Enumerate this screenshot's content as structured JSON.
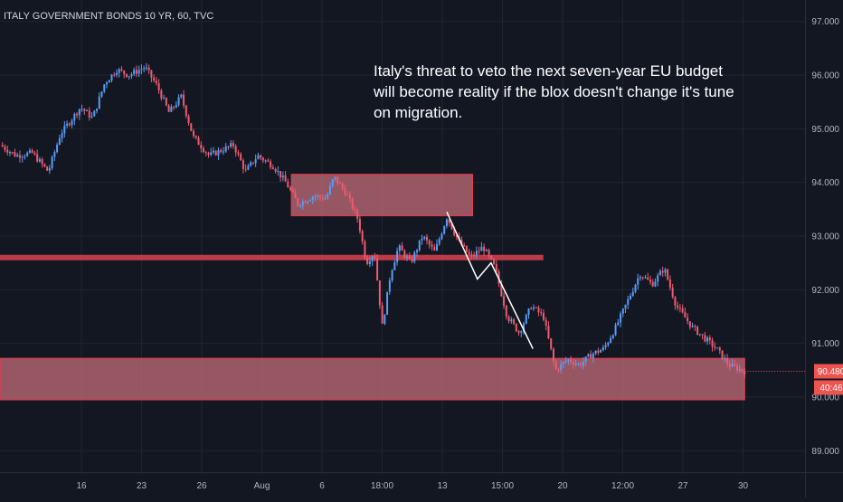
{
  "chart_data": {
    "type": "candlestick",
    "title": "ITALY GOVERNMENT BONDS 10 YR, 60, TVC",
    "y_range": [
      88.6,
      97.4
    ],
    "y_ticks": [
      {
        "value": 97,
        "label": "97.000"
      },
      {
        "value": 96,
        "label": "96.000"
      },
      {
        "value": 95,
        "label": "95.000"
      },
      {
        "value": 94,
        "label": "94.000"
      },
      {
        "value": 93,
        "label": "93.000"
      },
      {
        "value": 92,
        "label": "92.000"
      },
      {
        "value": 91,
        "label": "91.000"
      },
      {
        "value": 90,
        "label": "90.000"
      },
      {
        "value": 89,
        "label": "89.000"
      }
    ],
    "x_ticks": [
      "16",
      "23",
      "26",
      "Aug",
      "6",
      "18:00",
      "13",
      "15:00",
      "20",
      "12:00",
      "27",
      "30"
    ],
    "last_price": {
      "value": 90.48,
      "label": "90.480"
    },
    "countdown": {
      "label": "40:46"
    },
    "annotation": {
      "lines": [
        "Italy's threat to veto the next seven-year EU budget",
        "will become reality if the blox doesn't change it's tune",
        "on migration."
      ]
    },
    "colors": {
      "up": "#5b9cf6",
      "down": "#ef5b6e",
      "zone_fill": "#c96f7c",
      "zone_stroke": "#e23b4d",
      "level_line": "#d9424f",
      "trend_line": "#ffffff",
      "badge": "#ef5350",
      "grid": "#1f2431"
    },
    "levels": [
      {
        "price": 92.6,
        "x_end_fraction": 0.675
      }
    ],
    "zones": [
      {
        "top": 94.15,
        "bottom": 93.38,
        "x_from_fraction": 0.362,
        "x_to_fraction": 0.587
      },
      {
        "top": 90.72,
        "bottom": 89.95,
        "x_from_fraction": 0.0,
        "x_to_fraction": 0.925
      }
    ],
    "trend_lines": [
      [
        {
          "i": 0.555,
          "p": 93.45
        },
        {
          "i": 0.593,
          "p": 92.2
        },
        {
          "i": 0.61,
          "p": 92.5
        },
        {
          "i": 0.662,
          "p": 90.9
        }
      ]
    ],
    "path": [
      {
        "i": 0.0,
        "p": 94.7
      },
      {
        "i": 0.02,
        "p": 94.5
      },
      {
        "i": 0.04,
        "p": 94.55
      },
      {
        "i": 0.06,
        "p": 94.2
      },
      {
        "i": 0.075,
        "p": 94.9
      },
      {
        "i": 0.09,
        "p": 95.2
      },
      {
        "i": 0.1,
        "p": 95.4
      },
      {
        "i": 0.115,
        "p": 95.2
      },
      {
        "i": 0.13,
        "p": 95.85
      },
      {
        "i": 0.145,
        "p": 96.1
      },
      {
        "i": 0.16,
        "p": 96.0
      },
      {
        "i": 0.18,
        "p": 96.15
      },
      {
        "i": 0.195,
        "p": 95.8
      },
      {
        "i": 0.21,
        "p": 95.3
      },
      {
        "i": 0.225,
        "p": 95.6
      },
      {
        "i": 0.24,
        "p": 94.85
      },
      {
        "i": 0.26,
        "p": 94.5
      },
      {
        "i": 0.275,
        "p": 94.6
      },
      {
        "i": 0.29,
        "p": 94.7
      },
      {
        "i": 0.305,
        "p": 94.2
      },
      {
        "i": 0.32,
        "p": 94.5
      },
      {
        "i": 0.34,
        "p": 94.3
      },
      {
        "i": 0.355,
        "p": 94.0
      },
      {
        "i": 0.37,
        "p": 93.6
      },
      {
        "i": 0.39,
        "p": 93.75
      },
      {
        "i": 0.405,
        "p": 93.7
      },
      {
        "i": 0.415,
        "p": 94.1
      },
      {
        "i": 0.43,
        "p": 93.8
      },
      {
        "i": 0.445,
        "p": 93.3
      },
      {
        "i": 0.455,
        "p": 92.5
      },
      {
        "i": 0.465,
        "p": 92.7
      },
      {
        "i": 0.475,
        "p": 91.3
      },
      {
        "i": 0.485,
        "p": 92.3
      },
      {
        "i": 0.495,
        "p": 92.8
      },
      {
        "i": 0.51,
        "p": 92.5
      },
      {
        "i": 0.525,
        "p": 93.0
      },
      {
        "i": 0.54,
        "p": 92.7
      },
      {
        "i": 0.555,
        "p": 93.35
      },
      {
        "i": 0.57,
        "p": 92.9
      },
      {
        "i": 0.585,
        "p": 92.6
      },
      {
        "i": 0.6,
        "p": 92.8
      },
      {
        "i": 0.615,
        "p": 92.4
      },
      {
        "i": 0.63,
        "p": 91.5
      },
      {
        "i": 0.645,
        "p": 91.2
      },
      {
        "i": 0.66,
        "p": 91.7
      },
      {
        "i": 0.675,
        "p": 91.5
      },
      {
        "i": 0.69,
        "p": 90.5
      },
      {
        "i": 0.705,
        "p": 90.7
      },
      {
        "i": 0.72,
        "p": 90.6
      },
      {
        "i": 0.735,
        "p": 90.8
      },
      {
        "i": 0.75,
        "p": 90.9
      },
      {
        "i": 0.765,
        "p": 91.3
      },
      {
        "i": 0.78,
        "p": 91.8
      },
      {
        "i": 0.795,
        "p": 92.3
      },
      {
        "i": 0.81,
        "p": 92.1
      },
      {
        "i": 0.825,
        "p": 92.4
      },
      {
        "i": 0.84,
        "p": 91.7
      },
      {
        "i": 0.86,
        "p": 91.3
      },
      {
        "i": 0.875,
        "p": 91.1
      },
      {
        "i": 0.89,
        "p": 90.9
      },
      {
        "i": 0.905,
        "p": 90.6
      },
      {
        "i": 0.925,
        "p": 90.48
      }
    ]
  }
}
